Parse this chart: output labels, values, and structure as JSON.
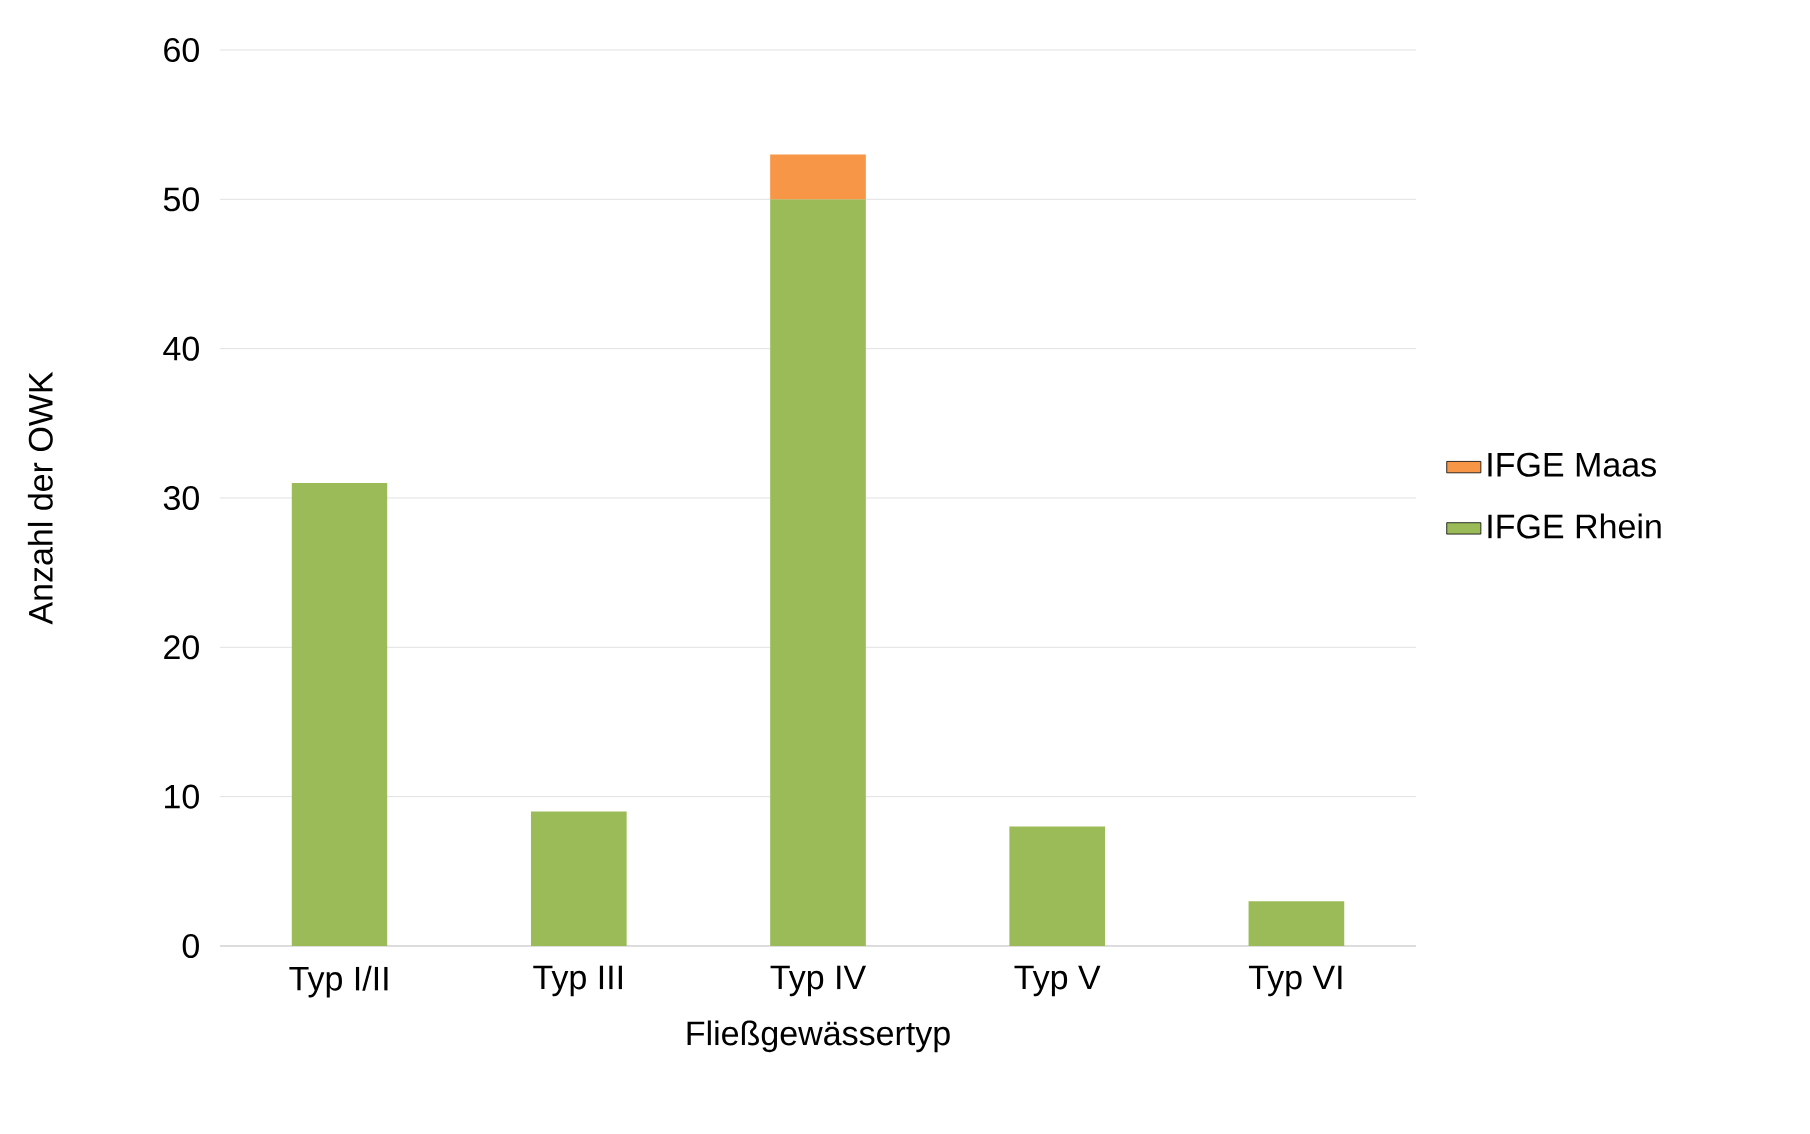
{
  "chart_data": {
    "type": "bar",
    "stacked": true,
    "xlabel": "Fließgewässertyp",
    "ylabel": "Anzahl der OWK",
    "categories": [
      "Typ I/II",
      "Typ III",
      "Typ IV",
      "Typ V",
      "Typ VI"
    ],
    "series": [
      {
        "name": "IFGE Rhein",
        "color": "#9bbb59",
        "values": [
          31,
          9,
          50,
          8,
          3
        ]
      },
      {
        "name": "IFGE Maas",
        "color": "#f79646",
        "values": [
          null,
          null,
          3,
          null,
          null
        ]
      }
    ],
    "ylim": [
      0,
      60
    ],
    "yticks": [
      0,
      10,
      20,
      30,
      40,
      50,
      60
    ],
    "grid": "y",
    "legend": "right"
  }
}
